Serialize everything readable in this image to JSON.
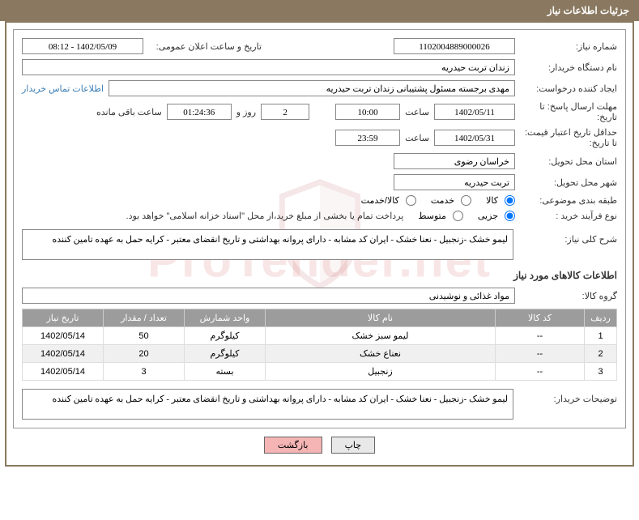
{
  "header": {
    "title": "جزئیات اطلاعات نیاز"
  },
  "watermark": "ProTender.net",
  "fields": {
    "need_no_label": "شماره نیاز:",
    "need_no": "1102004889000026",
    "announce_label": "تاریخ و ساعت اعلان عمومی:",
    "announce_val": "1402/05/09 - 08:12",
    "buyer_org_label": "نام دستگاه خریدار:",
    "buyer_org": "زندان تربت حیدریه",
    "requester_label": "ایجاد کننده درخواست:",
    "requester": "مهدی برجسته مسئول پشتیبانی زندان تربت حیدریه",
    "contact_link": "اطلاعات تماس خریدار",
    "deadline_label": "مهلت ارسال پاسخ: تا تاریخ:",
    "deadline_date": "1402/05/11",
    "time_label": "ساعت",
    "deadline_time": "10:00",
    "remain_days": "2",
    "days_and": "روز و",
    "remain_time": "01:24:36",
    "remain_suffix": "ساعت باقی مانده",
    "validity_label": "حداقل تاریخ اعتبار قیمت: تا تاریخ:",
    "validity_date": "1402/05/31",
    "validity_time": "23:59",
    "province_label": "استان محل تحویل:",
    "province": "خراسان رضوی",
    "city_label": "شهر محل تحویل:",
    "city": "تربت حیدریه",
    "category_label": "طبقه بندی موضوعی:",
    "cat_goods": "کالا",
    "cat_service": "خدمت",
    "cat_both": "کالا/خدمت",
    "process_label": "نوع فرآیند خرید :",
    "proc_minor": "جزیی",
    "proc_medium": "متوسط",
    "proc_note": "پرداخت تمام یا بخشی از مبلغ خرید،از محل \"اسناد خزانه اسلامی\" خواهد بود.",
    "overview_label": "شرح کلی نیاز:",
    "overview": "لیمو خشک -زنجبیل - نعنا خشک - ایران کد مشابه - دارای پروانه بهداشتی و تاریخ انقضای معتبر - کرایه حمل به عهده تامین کننده",
    "items_title": "اطلاعات کالاهای مورد نیاز",
    "group_label": "گروه کالا:",
    "group": "مواد غذائی و نوشیدنی",
    "buyer_desc_label": "توضیحات خریدار:",
    "buyer_desc": "لیمو خشک -زنجبیل - نعنا خشک - ایران کد مشابه - دارای پروانه بهداشتی و تاریخ انقضای معتبر - کرایه حمل به عهده تامین کننده"
  },
  "table": {
    "headers": {
      "row": "ردیف",
      "code": "کد کالا",
      "name": "نام کالا",
      "unit": "واحد شمارش",
      "qty": "تعداد / مقدار",
      "date": "تاریخ نیاز"
    },
    "rows": [
      {
        "n": "1",
        "code": "--",
        "name": "لیمو سبز خشک",
        "unit": "کیلوگرم",
        "qty": "50",
        "date": "1402/05/14"
      },
      {
        "n": "2",
        "code": "--",
        "name": "نعناع خشک",
        "unit": "کیلوگرم",
        "qty": "20",
        "date": "1402/05/14"
      },
      {
        "n": "3",
        "code": "--",
        "name": "زنجبیل",
        "unit": "بسته",
        "qty": "3",
        "date": "1402/05/14"
      }
    ]
  },
  "buttons": {
    "print": "چاپ",
    "back": "بازگشت"
  }
}
